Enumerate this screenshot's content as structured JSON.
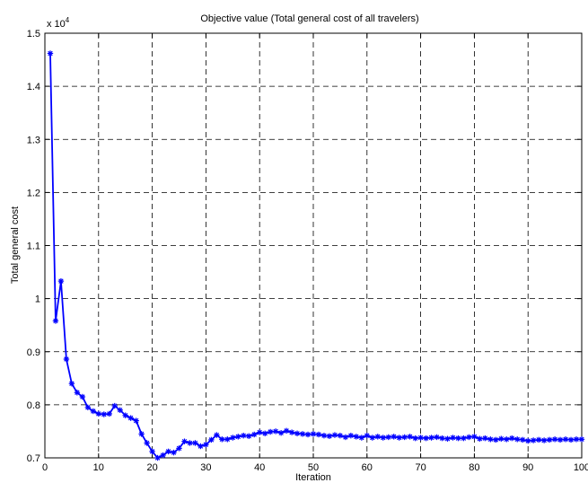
{
  "chart_data": {
    "type": "line",
    "title": "Objective value (Total general cost of all travelers)",
    "xlabel": "Iteration",
    "ylabel": "Total general cost",
    "y_exponent_label": "x 10",
    "y_exponent_power": "4",
    "xlim": [
      0,
      100
    ],
    "ylim": [
      0.7,
      1.5
    ],
    "x_ticks": [
      "0",
      "10",
      "20",
      "30",
      "40",
      "50",
      "60",
      "70",
      "80",
      "90",
      "100"
    ],
    "y_ticks": [
      "0.7",
      "0.8",
      "0.9",
      "1",
      "1.1",
      "1.2",
      "1.3",
      "1.4",
      "1.5"
    ],
    "grid": true,
    "marker": "asterisk",
    "series": [
      {
        "color": "#0000ff",
        "x": [
          1,
          2,
          3,
          4,
          5,
          6,
          7,
          8,
          9,
          10,
          11,
          12,
          13,
          14,
          15,
          16,
          17,
          18,
          19,
          20,
          21,
          22,
          23,
          24,
          25,
          26,
          27,
          28,
          29,
          30,
          31,
          32,
          33,
          34,
          35,
          36,
          37,
          38,
          39,
          40,
          41,
          42,
          43,
          44,
          45,
          46,
          47,
          48,
          49,
          50,
          51,
          52,
          53,
          54,
          55,
          56,
          57,
          58,
          59,
          60,
          61,
          62,
          63,
          64,
          65,
          66,
          67,
          68,
          69,
          70,
          71,
          72,
          73,
          74,
          75,
          76,
          77,
          78,
          79,
          80,
          81,
          82,
          83,
          84,
          85,
          86,
          87,
          88,
          89,
          90,
          91,
          92,
          93,
          94,
          95,
          96,
          97,
          98,
          99,
          100
        ],
        "values": [
          1.462,
          0.958,
          1.033,
          0.886,
          0.84,
          0.823,
          0.815,
          0.795,
          0.788,
          0.783,
          0.782,
          0.783,
          0.798,
          0.79,
          0.78,
          0.775,
          0.77,
          0.745,
          0.728,
          0.712,
          0.7,
          0.705,
          0.712,
          0.71,
          0.718,
          0.731,
          0.728,
          0.728,
          0.722,
          0.725,
          0.734,
          0.743,
          0.735,
          0.735,
          0.738,
          0.74,
          0.742,
          0.741,
          0.744,
          0.748,
          0.746,
          0.749,
          0.75,
          0.747,
          0.751,
          0.748,
          0.746,
          0.745,
          0.744,
          0.745,
          0.744,
          0.742,
          0.741,
          0.743,
          0.742,
          0.739,
          0.742,
          0.74,
          0.738,
          0.742,
          0.738,
          0.74,
          0.738,
          0.739,
          0.74,
          0.738,
          0.739,
          0.74,
          0.737,
          0.738,
          0.737,
          0.738,
          0.739,
          0.737,
          0.736,
          0.738,
          0.737,
          0.737,
          0.739,
          0.74,
          0.736,
          0.737,
          0.735,
          0.734,
          0.736,
          0.735,
          0.737,
          0.735,
          0.734,
          0.732,
          0.733,
          0.734,
          0.733,
          0.734,
          0.735,
          0.734,
          0.735,
          0.734,
          0.735,
          0.735
        ]
      }
    ]
  }
}
